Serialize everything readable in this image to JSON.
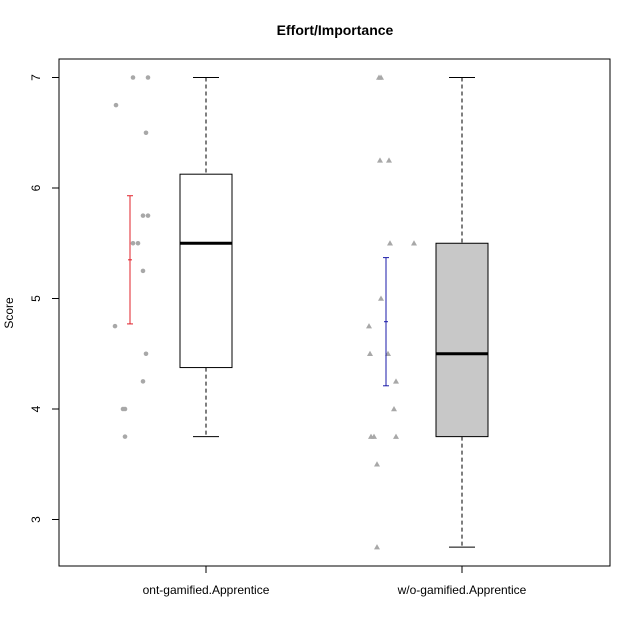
{
  "chart_data": {
    "type": "boxplot",
    "title": "Effort/Importance",
    "xlabel": "",
    "ylabel": "Score",
    "ylim": [
      2.6,
      7.1
    ],
    "yticks": [
      3,
      4,
      5,
      6,
      7
    ],
    "grid": false,
    "colors": {
      "box_fill_1": "#ffffff",
      "box_fill_2": "#c8c8c8",
      "points": "#a8a8a8",
      "errorbar_1": "#e0202a",
      "errorbar_2": "#1a1aa8",
      "median": "#000000",
      "whisker": "#555555"
    },
    "groups": [
      {
        "label": "ont-gamified.Apprentice",
        "box": {
          "whisker_low": 3.75,
          "q1": 4.375,
          "median": 5.5,
          "q3": 6.125,
          "whisker_high": 7.0
        },
        "point_shape": "circle",
        "points": [
          {
            "offset": 0.05,
            "y": 7.0
          },
          {
            "offset": 0.2,
            "y": 7.0
          },
          {
            "offset": -0.12,
            "y": 6.75
          },
          {
            "offset": 0.18,
            "y": 6.5
          },
          {
            "offset": 0.15,
            "y": 5.75
          },
          {
            "offset": 0.2,
            "y": 5.75
          },
          {
            "offset": 0.05,
            "y": 5.5
          },
          {
            "offset": 0.1,
            "y": 5.5
          },
          {
            "offset": 0.15,
            "y": 5.25
          },
          {
            "offset": -0.13,
            "y": 4.75
          },
          {
            "offset": 0.18,
            "y": 4.5
          },
          {
            "offset": 0.15,
            "y": 4.25
          },
          {
            "offset": -0.05,
            "y": 4.0
          },
          {
            "offset": -0.03,
            "y": 4.0
          },
          {
            "offset": -0.03,
            "y": 3.75
          }
        ],
        "errorbar": {
          "offset": 0.02,
          "mean": 5.35,
          "low": 4.77,
          "high": 5.93
        }
      },
      {
        "label": "w/o-gamified.Apprentice",
        "box": {
          "whisker_low": 2.75,
          "q1": 3.75,
          "median": 4.5,
          "q3": 5.5,
          "whisker_high": 7.0
        },
        "point_shape": "triangle",
        "points": [
          {
            "offset": -0.05,
            "y": 7.0
          },
          {
            "offset": -0.03,
            "y": 7.0
          },
          {
            "offset": -0.04,
            "y": 6.25
          },
          {
            "offset": 0.05,
            "y": 6.25
          },
          {
            "offset": 0.06,
            "y": 5.5
          },
          {
            "offset": 0.3,
            "y": 5.5
          },
          {
            "offset": -0.03,
            "y": 5.0
          },
          {
            "offset": -0.15,
            "y": 4.75
          },
          {
            "offset": -0.14,
            "y": 4.5
          },
          {
            "offset": 0.04,
            "y": 4.5
          },
          {
            "offset": 0.12,
            "y": 4.25
          },
          {
            "offset": 0.1,
            "y": 4.0
          },
          {
            "offset": -0.13,
            "y": 3.75
          },
          {
            "offset": -0.1,
            "y": 3.75
          },
          {
            "offset": 0.12,
            "y": 3.75
          },
          {
            "offset": -0.07,
            "y": 3.5
          },
          {
            "offset": -0.07,
            "y": 2.75
          }
        ],
        "errorbar": {
          "offset": 0.02,
          "mean": 4.79,
          "low": 4.21,
          "high": 5.37
        }
      }
    ]
  }
}
